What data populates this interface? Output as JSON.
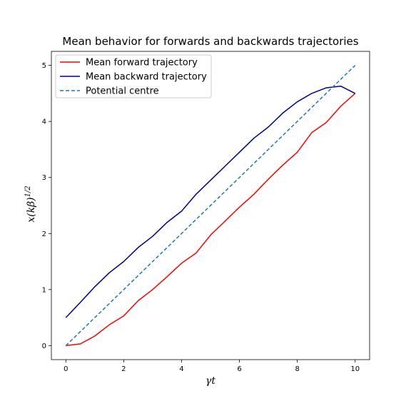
{
  "chart_data": {
    "type": "line",
    "title": "Mean behavior for forwards and backwards trajectories",
    "xlabel": "γt",
    "ylabel": "x(kβ)^1/2",
    "xlim": [
      -0.5,
      10.5
    ],
    "ylim": [
      -0.25,
      5.25
    ],
    "xticks": [
      0,
      2,
      4,
      6,
      8,
      10
    ],
    "yticks": [
      0,
      1,
      2,
      3,
      4,
      5
    ],
    "legend_position": "top-left",
    "grid": false,
    "series": [
      {
        "name": "Mean forward trajectory",
        "color": "#ff0000",
        "style": "solid",
        "x": [
          0,
          0.5,
          1,
          1.5,
          2,
          2.5,
          3,
          3.5,
          4,
          4.5,
          5,
          5.5,
          6,
          6.5,
          7,
          7.5,
          8,
          8.5,
          9,
          9.5,
          10
        ],
        "y": [
          0.0,
          0.03,
          0.17,
          0.37,
          0.53,
          0.8,
          1.0,
          1.23,
          1.47,
          1.65,
          1.97,
          2.22,
          2.47,
          2.7,
          2.97,
          3.22,
          3.45,
          3.8,
          3.98,
          4.27,
          4.5
        ]
      },
      {
        "name": "Mean backward trajectory",
        "color": "#00008b",
        "style": "solid",
        "x": [
          0,
          0.5,
          1,
          1.5,
          2,
          2.5,
          3,
          3.5,
          4,
          4.5,
          5,
          5.5,
          6,
          6.5,
          7,
          7.5,
          8,
          8.5,
          9,
          9.5,
          10
        ],
        "y": [
          0.5,
          0.77,
          1.05,
          1.3,
          1.5,
          1.75,
          1.95,
          2.2,
          2.4,
          2.7,
          2.95,
          3.2,
          3.45,
          3.7,
          3.9,
          4.15,
          4.35,
          4.5,
          4.6,
          4.63,
          4.5
        ]
      },
      {
        "name": "Potential centre",
        "color": "#1f77b4",
        "style": "dashed",
        "x": [
          0,
          10
        ],
        "y": [
          0,
          5
        ]
      }
    ]
  }
}
